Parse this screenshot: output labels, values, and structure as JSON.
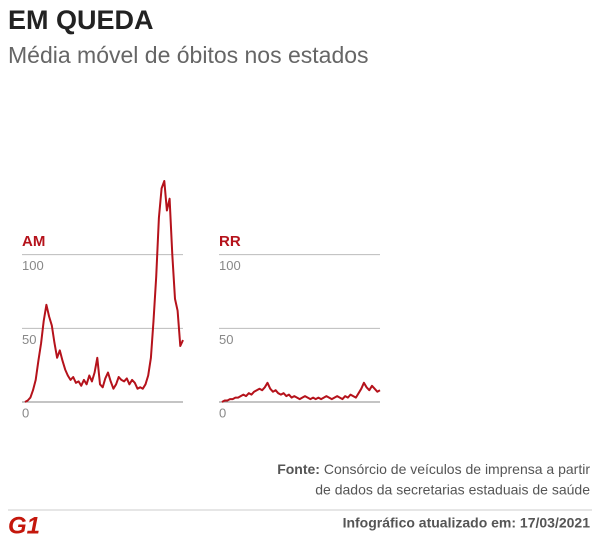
{
  "title": "EM QUEDA",
  "subtitle": "Média móvel de óbitos nos estados",
  "source_label": "Fonte:",
  "source_lines": [
    "Consórcio de veículos de imprensa a partir",
    "de dados da secretarias estaduais de saúde"
  ],
  "logo": "G1",
  "updated": "Infográfico atualizado em: 17/03/2021",
  "chart_data": [
    {
      "type": "line",
      "title": "AM",
      "color": "#b5121b",
      "ylim": [
        0,
        150
      ],
      "yticks": [
        0,
        50,
        100
      ],
      "grid": true,
      "values": [
        0,
        1,
        3,
        8,
        15,
        28,
        40,
        55,
        66,
        58,
        52,
        40,
        30,
        35,
        28,
        22,
        18,
        15,
        17,
        13,
        14,
        11,
        15,
        12,
        18,
        14,
        20,
        30,
        12,
        10,
        16,
        20,
        14,
        9,
        12,
        17,
        15,
        14,
        16,
        12,
        15,
        13,
        9,
        10,
        9,
        12,
        18,
        30,
        55,
        85,
        125,
        145,
        150,
        130,
        138,
        100,
        70,
        62,
        38,
        42
      ]
    },
    {
      "type": "line",
      "title": "RR",
      "color": "#b5121b",
      "ylim": [
        0,
        150
      ],
      "yticks": [
        0,
        50,
        100
      ],
      "grid": true,
      "values": [
        0,
        1,
        1,
        2,
        2,
        3,
        3,
        4,
        5,
        4,
        6,
        5,
        7,
        8,
        9,
        8,
        10,
        13,
        9,
        7,
        8,
        6,
        5,
        6,
        4,
        5,
        3,
        4,
        3,
        2,
        3,
        4,
        3,
        2,
        3,
        2,
        3,
        2,
        3,
        4,
        3,
        2,
        3,
        4,
        3,
        2,
        4,
        3,
        5,
        4,
        3,
        6,
        9,
        13,
        10,
        8,
        11,
        9,
        7,
        8
      ]
    }
  ]
}
